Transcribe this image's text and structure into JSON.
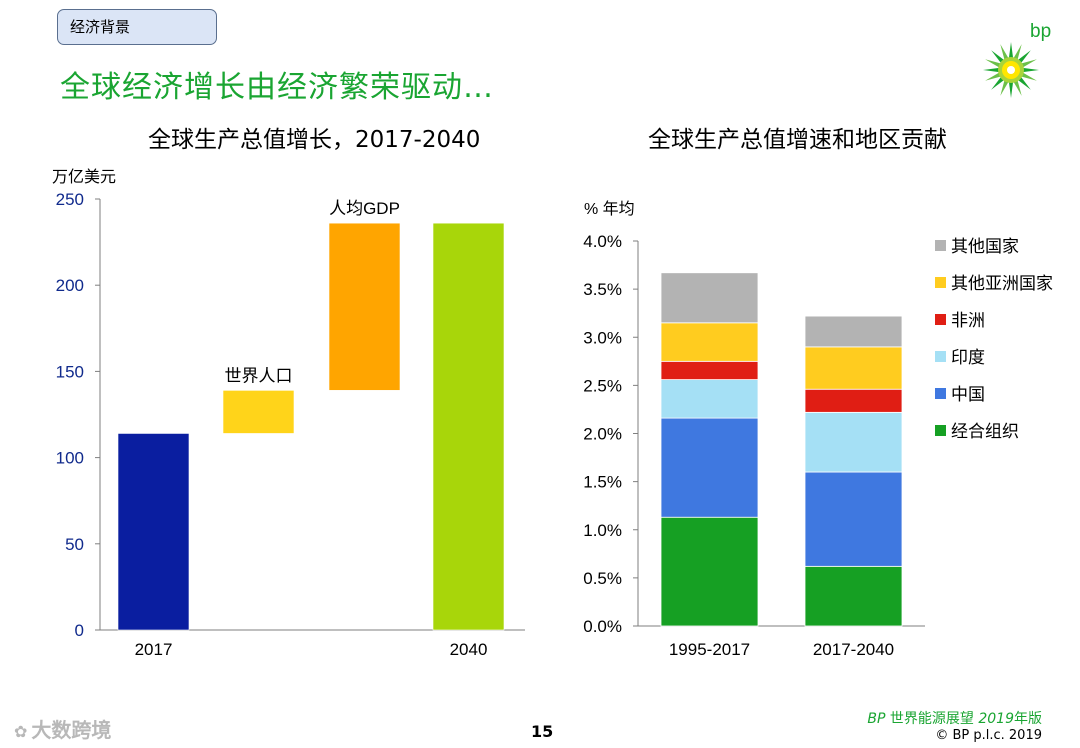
{
  "section_tag": "经济背景",
  "title": "全球经济增长由经济繁荣驱动…",
  "logo": {
    "text": "bp",
    "colors": {
      "green": "#1aa532",
      "yellow": "#ffe600"
    }
  },
  "left_chart": {
    "title": "全球生产总值增长，2017-2040",
    "chart_data": {
      "type": "waterfall",
      "title": "全球生产总值增长，2017-2040",
      "ylabel": "万亿美元",
      "ylim": [
        0,
        250
      ],
      "yticks": [
        "0",
        "50",
        "100",
        "150",
        "200",
        "250"
      ],
      "bars": [
        {
          "name": "bar-2017",
          "label": "2017",
          "label_pos": "below",
          "from": 0,
          "to": 114,
          "color": "#0a1ea0"
        },
        {
          "name": "bar-world-population",
          "label": "世界人口",
          "label_pos": "above",
          "from": 114,
          "to": 139,
          "color": "#ffd41a"
        },
        {
          "name": "bar-gdp-per-capita",
          "label": "人均GDP",
          "label_pos": "above",
          "from": 139,
          "to": 236,
          "color": "#ffa500"
        },
        {
          "name": "bar-2040",
          "label": "2040",
          "label_pos": "below",
          "from": 0,
          "to": 236,
          "color": "#a8d60a"
        }
      ]
    }
  },
  "right_chart": {
    "title": "全球生产总值增速和地区贡献",
    "chart_data": {
      "type": "stacked-bar",
      "title": "全球生产总值增速和地区贡献",
      "ylabel": "% 年均",
      "ylim": [
        0,
        4.0
      ],
      "yticks": [
        "0.0%",
        "0.5%",
        "1.0%",
        "1.5%",
        "2.0%",
        "2.5%",
        "3.0%",
        "3.5%",
        "4.0%"
      ],
      "categories": [
        "1995-2017",
        "2017-2040"
      ],
      "series": [
        {
          "name": "经合组织",
          "color": "#16a023",
          "values": [
            1.13,
            0.62
          ]
        },
        {
          "name": "中国",
          "color": "#3f78e0",
          "values": [
            1.03,
            0.98
          ]
        },
        {
          "name": "印度",
          "color": "#a5e0f5",
          "values": [
            0.4,
            0.62
          ]
        },
        {
          "name": "非洲",
          "color": "#e01e14",
          "values": [
            0.19,
            0.24
          ]
        },
        {
          "name": "其他亚洲国家",
          "color": "#ffcc1f",
          "values": [
            0.4,
            0.44
          ]
        },
        {
          "name": "其他国家",
          "color": "#b3b3b3",
          "values": [
            0.52,
            0.32
          ]
        }
      ],
      "legend_order": [
        "其他国家",
        "其他亚洲国家",
        "非洲",
        "印度",
        "中国",
        "经合组织"
      ],
      "legend_position": "right"
    }
  },
  "footer": {
    "publication_brand": "BP",
    "publication_title": "世界能源展望",
    "publication_year": "2019",
    "publication_suffix": "年版",
    "copyright": "© BP p.l.c. 2019",
    "page_number": "15",
    "watermark": "大数跨境"
  }
}
